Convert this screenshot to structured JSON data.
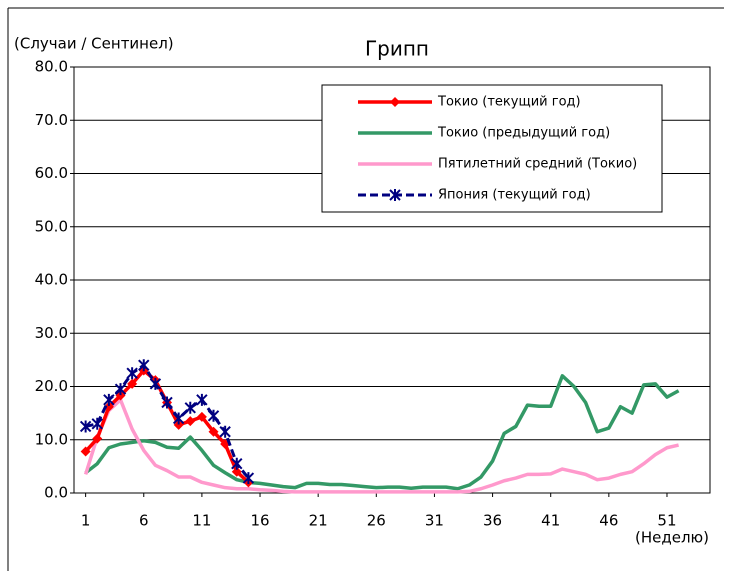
{
  "chart_data": {
    "type": "line",
    "title": "Грипп",
    "ylabel": "(Случаи / Сентинел)",
    "xlabel": "(Неделю)",
    "x": [
      1,
      2,
      3,
      4,
      5,
      6,
      7,
      8,
      9,
      10,
      11,
      12,
      13,
      14,
      15,
      16,
      17,
      18,
      19,
      20,
      21,
      22,
      23,
      24,
      25,
      26,
      27,
      28,
      29,
      30,
      31,
      32,
      33,
      34,
      35,
      36,
      37,
      38,
      39,
      40,
      41,
      42,
      43,
      44,
      45,
      46,
      47,
      48,
      49,
      50,
      51,
      52
    ],
    "xlim": [
      0,
      54.7
    ],
    "xticks": [
      1,
      6,
      11,
      16,
      21,
      26,
      31,
      36,
      41,
      46,
      51
    ],
    "ylim": [
      0,
      80
    ],
    "yticks": [
      {
        "value": 0,
        "label": "0.0"
      },
      {
        "value": 10,
        "label": "10.0"
      },
      {
        "value": 20,
        "label": "20.0"
      },
      {
        "value": 30,
        "label": "30.0"
      },
      {
        "value": 40,
        "label": "40.0"
      },
      {
        "value": 50,
        "label": "50.0"
      },
      {
        "value": 60,
        "label": "60.0"
      },
      {
        "value": 70,
        "label": "70.0"
      },
      {
        "value": 80,
        "label": "80.0"
      }
    ],
    "grid": true,
    "legend": "upper right",
    "series": [
      {
        "name": "Токио (текущий год)",
        "color": "#ff0000",
        "marker": "diamond",
        "dash": false,
        "values": [
          7.8,
          10.2,
          16.2,
          18.3,
          20.5,
          23.0,
          21.2,
          17.0,
          12.8,
          13.5,
          14.3,
          11.5,
          9.2,
          4.0,
          2.0,
          null,
          null,
          null,
          null,
          null,
          null,
          null,
          null,
          null,
          null,
          null,
          null,
          null,
          null,
          null,
          null,
          null,
          null,
          null,
          null,
          null,
          null,
          null,
          null,
          null,
          null,
          null,
          null,
          null,
          null,
          null,
          null,
          null,
          null,
          null,
          null,
          null
        ]
      },
      {
        "name": "Токио (предыдущий год)",
        "color": "#339966",
        "marker": "none",
        "dash": false,
        "values": [
          3.8,
          5.5,
          8.5,
          9.2,
          9.5,
          9.8,
          9.5,
          8.6,
          8.4,
          10.5,
          8.0,
          5.2,
          3.8,
          2.5,
          2.0,
          1.8,
          1.5,
          1.2,
          1.0,
          1.8,
          1.8,
          1.6,
          1.6,
          1.4,
          1.2,
          1.0,
          1.1,
          1.1,
          0.9,
          1.1,
          1.1,
          1.1,
          0.8,
          1.5,
          3.0,
          6.0,
          11.2,
          12.5,
          16.5,
          16.3,
          16.3,
          22.0,
          20.0,
          17.0,
          11.5,
          12.2,
          16.2,
          15.0,
          20.3,
          20.5,
          18.0,
          19.2
        ]
      },
      {
        "name": "Пятилетний средний (Токио)",
        "color": "#ff99cc",
        "marker": "none",
        "dash": false,
        "values": [
          3.5,
          10.5,
          15.5,
          17.5,
          12.0,
          8.0,
          5.2,
          4.2,
          3.0,
          3.0,
          2.0,
          1.5,
          1.0,
          0.8,
          0.8,
          0.6,
          0.5,
          0.3,
          0.2,
          0.2,
          0.2,
          0.2,
          0.2,
          0.2,
          0.2,
          0.2,
          0.2,
          0.2,
          0.2,
          0.2,
          0.2,
          0.2,
          0.2,
          0.3,
          0.8,
          1.5,
          2.3,
          2.8,
          3.5,
          3.5,
          3.6,
          4.5,
          4.0,
          3.5,
          2.5,
          2.8,
          3.5,
          4.0,
          5.5,
          7.2,
          8.5,
          9.0
        ]
      },
      {
        "name": "Япония (текущий год)",
        "color": "#000080",
        "marker": "star",
        "dash": true,
        "values": [
          12.5,
          13.0,
          17.5,
          19.5,
          22.5,
          24.0,
          20.5,
          17.0,
          14.0,
          16.0,
          17.5,
          14.5,
          11.5,
          5.5,
          2.8,
          null,
          null,
          null,
          null,
          null,
          null,
          null,
          null,
          null,
          null,
          null,
          null,
          null,
          null,
          null,
          null,
          null,
          null,
          null,
          null,
          null,
          null,
          null,
          null,
          null,
          null,
          null,
          null,
          null,
          null,
          null,
          null,
          null,
          null,
          null,
          null,
          null
        ]
      }
    ]
  }
}
